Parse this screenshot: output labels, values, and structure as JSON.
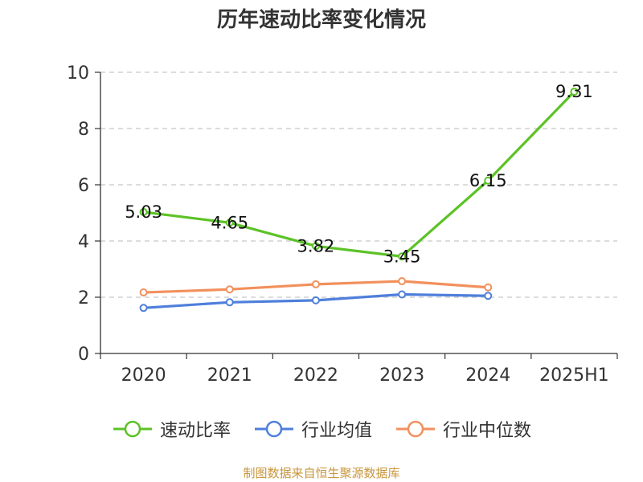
{
  "title": "历年速动比率变化情况",
  "source": "制图数据来自恒生聚源数据库",
  "chart_data": {
    "type": "line",
    "categories": [
      "2020",
      "2021",
      "2022",
      "2023",
      "2024",
      "2025H1"
    ],
    "ylim": [
      0,
      10
    ],
    "yticks": [
      0,
      2,
      4,
      6,
      8,
      10
    ],
    "grid": true,
    "legend_position": "bottom",
    "series": [
      {
        "name": "速动比率",
        "color": "#5cc226",
        "values": [
          5.03,
          4.65,
          3.82,
          3.45,
          6.15,
          9.31
        ],
        "labels": [
          "5.03",
          "4.65",
          "3.82",
          "3.45",
          "6.15",
          "9.31"
        ]
      },
      {
        "name": "行业均值",
        "color": "#4f7fdb",
        "values": [
          1.62,
          1.82,
          1.89,
          2.1,
          2.05,
          null
        ]
      },
      {
        "name": "行业中位数",
        "color": "#f2905c",
        "values": [
          2.17,
          2.28,
          2.46,
          2.57,
          2.35,
          null
        ]
      }
    ]
  }
}
